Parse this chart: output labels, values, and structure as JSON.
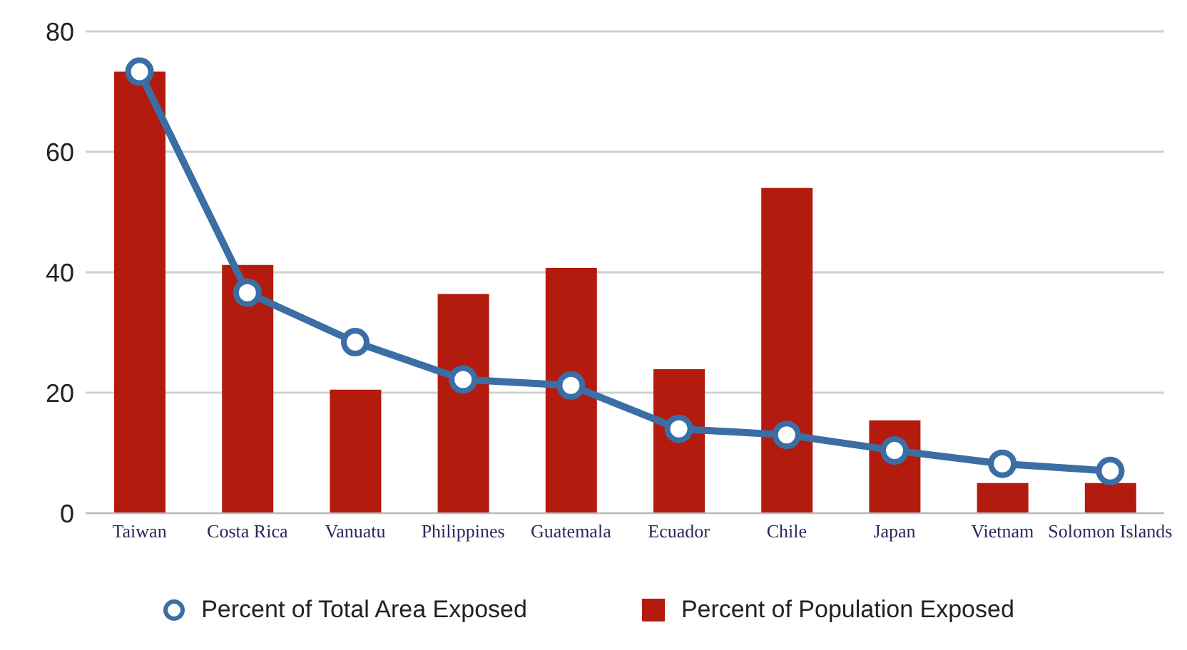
{
  "chart_data": {
    "type": "bar",
    "categories": [
      "Taiwan",
      "Costa Rica",
      "Vanuatu",
      "Philippines",
      "Guatemala",
      "Ecuador",
      "Chile",
      "Japan",
      "Vietnam",
      "Solomon Islands"
    ],
    "series": [
      {
        "name": "Percent of Total Area Exposed",
        "type": "line",
        "color": "#3a6ea5",
        "values": [
          73.3,
          36.6,
          28.4,
          22.2,
          21.2,
          14,
          13,
          10.4,
          8.2,
          7
        ]
      },
      {
        "name": "Percent of Population Exposed",
        "color": "#b31b0e",
        "values": [
          73.3,
          41.2,
          20.5,
          36.4,
          40.7,
          23.9,
          54,
          15.4,
          5,
          5
        ]
      }
    ],
    "ylim": [
      0,
      80
    ],
    "yticks": [
      0,
      20,
      40,
      60,
      80
    ],
    "grid": "y",
    "legend": "bottom",
    "marker": "circle"
  }
}
